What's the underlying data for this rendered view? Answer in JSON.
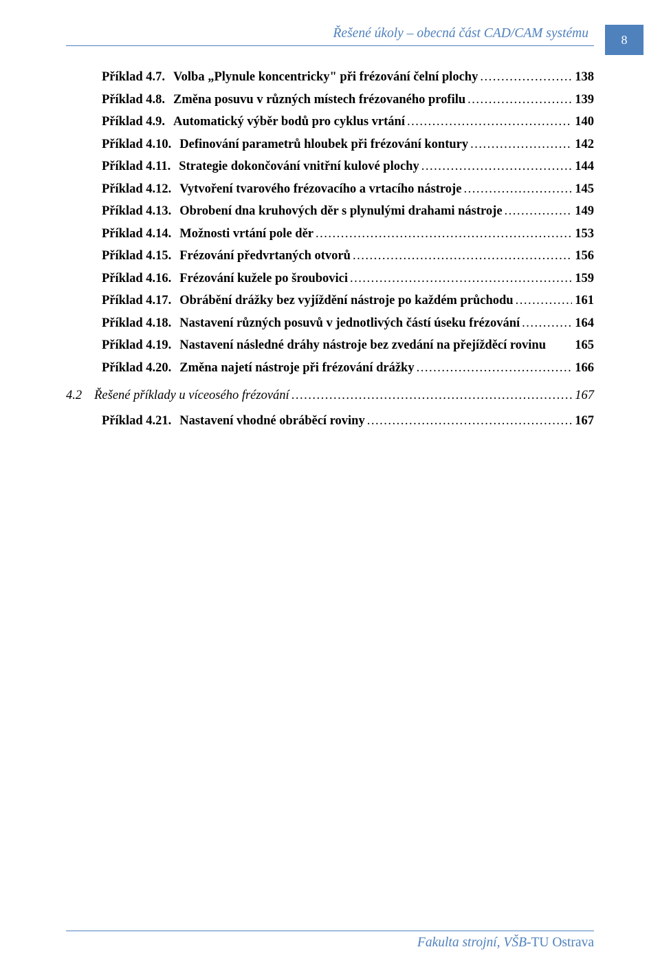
{
  "colors": {
    "accent": "#4f81bd",
    "text": "#000000",
    "background": "#ffffff",
    "page_number_text": "#ffffff"
  },
  "typography": {
    "body_font": "Times New Roman",
    "base_size_pt": 14,
    "header_italic": true,
    "section_italic": true
  },
  "header": {
    "running_title": "Řešené úkoly – obecná část CAD/CAM systému",
    "page_number": "8"
  },
  "footer": {
    "italic_part": "Fakulta strojní, VŠB",
    "normal_part": "-TU Ostrava"
  },
  "toc": {
    "leader_char": ".",
    "entries": [
      {
        "label": "Příklad 4.7.",
        "title": "Volba „Plynule koncentricky\" při frézování čelní plochy",
        "page": "138",
        "level": "item"
      },
      {
        "label": "Příklad 4.8.",
        "title": "Změna posuvu v různých místech frézovaného profilu",
        "page": "139",
        "level": "item"
      },
      {
        "label": "Příklad 4.9.",
        "title": "Automatický výběr bodů pro cyklus vrtání",
        "page": "140",
        "level": "item"
      },
      {
        "label": "Příklad 4.10.",
        "title": "Definování parametrů hloubek při frézování kontury",
        "page": "142",
        "level": "item"
      },
      {
        "label": "Příklad 4.11.",
        "title": "Strategie dokončování vnitřní kulové plochy",
        "page": "144",
        "level": "item"
      },
      {
        "label": "Příklad 4.12.",
        "title": "Vytvoření tvarového frézovacího a vrtacího nástroje",
        "page": "145",
        "level": "item"
      },
      {
        "label": "Příklad 4.13.",
        "title": "Obrobení dna kruhových děr s plynulými drahami nástroje",
        "page": "149",
        "level": "item"
      },
      {
        "label": "Příklad 4.14.",
        "title": "Možnosti vrtání pole děr",
        "page": "153",
        "level": "item"
      },
      {
        "label": "Příklad 4.15.",
        "title": "Frézování předvrtaných otvorů",
        "page": "156",
        "level": "item"
      },
      {
        "label": "Příklad 4.16.",
        "title": "Frézování kužele po šroubovici",
        "page": "159",
        "level": "item"
      },
      {
        "label": "Příklad 4.17.",
        "title": "Obrábění drážky bez vyjíždění nástroje po každém průchodu",
        "page": "161",
        "level": "item"
      },
      {
        "label": "Příklad 4.18.",
        "title": "Nastavení různých posuvů v jednotlivých částí úseku frézování",
        "page": "164",
        "level": "item"
      },
      {
        "label": "Příklad 4.19.",
        "title": "Nastavení následné dráhy nástroje bez zvedání na přejížděcí rovinu",
        "page": "165",
        "level": "item",
        "no_leader": true
      },
      {
        "label": "Příklad 4.20.",
        "title": "Změna najetí nástroje při frézování drážky",
        "page": "166",
        "level": "item"
      },
      {
        "label": "4.2",
        "title": "Řešené příklady u víceosého frézování",
        "page": "167",
        "level": "section"
      },
      {
        "label": "Příklad 4.21.",
        "title": "Nastavení vhodné obráběcí roviny",
        "page": "167",
        "level": "item"
      }
    ]
  }
}
